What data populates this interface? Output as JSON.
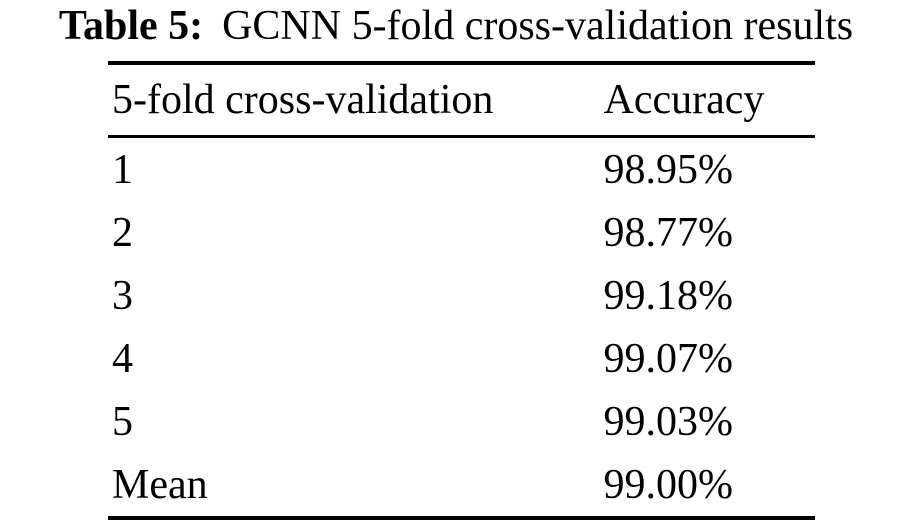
{
  "caption": {
    "label": "Table 5:",
    "text": "GCNN 5-fold cross-validation results"
  },
  "table": {
    "headers": [
      "5-fold cross-validation",
      "Accuracy"
    ],
    "rows": [
      {
        "fold": "1",
        "accuracy": "98.95%"
      },
      {
        "fold": "2",
        "accuracy": "98.77%"
      },
      {
        "fold": "3",
        "accuracy": "99.18%"
      },
      {
        "fold": "4",
        "accuracy": "99.07%"
      },
      {
        "fold": "5",
        "accuracy": "99.03%"
      },
      {
        "fold": "Mean",
        "accuracy": "99.00%"
      }
    ]
  },
  "colors": {
    "text": "#000000",
    "background": "#ffffff",
    "rule": "#000000"
  },
  "chart_data": {
    "type": "table",
    "title": "Table 5: GCNN 5-fold cross-validation results",
    "columns": [
      "5-fold cross-validation",
      "Accuracy"
    ],
    "rows": [
      [
        "1",
        "98.95%"
      ],
      [
        "2",
        "98.77%"
      ],
      [
        "3",
        "99.18%"
      ],
      [
        "4",
        "99.07%"
      ],
      [
        "5",
        "99.03%"
      ],
      [
        "Mean",
        "99.00%"
      ]
    ]
  }
}
